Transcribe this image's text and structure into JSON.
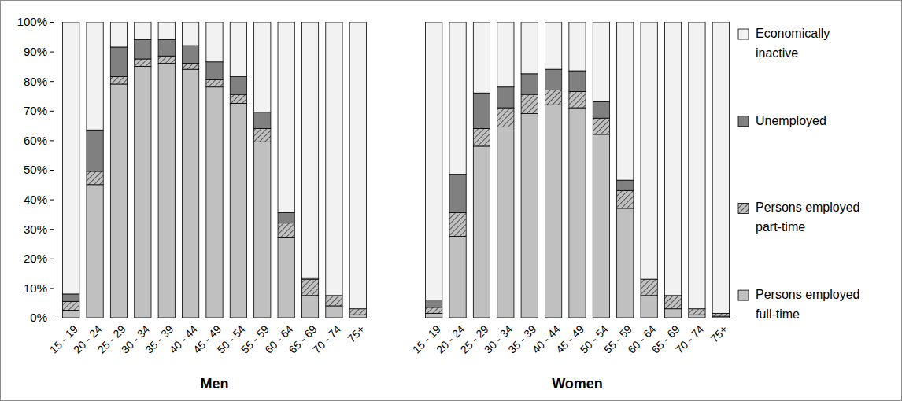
{
  "chart_data": [
    {
      "type": "bar",
      "stacked": true,
      "xlabel": "Men",
      "legend": "right",
      "categories": [
        "15 - 19",
        "20 - 24",
        "25 - 29",
        "30 - 34",
        "35 - 39",
        "40 - 44",
        "45 - 49",
        "50 - 54",
        "55 - 59",
        "60 - 64",
        "65 - 69",
        "70 - 74",
        "75+"
      ],
      "ylim": [
        0,
        100
      ],
      "yticks": [
        {
          "value": 0,
          "label": "0%"
        },
        {
          "value": 10,
          "label": "10%"
        },
        {
          "value": 20,
          "label": "20%"
        },
        {
          "value": 30,
          "label": "30%"
        },
        {
          "value": 40,
          "label": "40%"
        },
        {
          "value": 50,
          "label": "50%"
        },
        {
          "value": 60,
          "label": "60%"
        },
        {
          "value": 70,
          "label": "70%"
        },
        {
          "value": 80,
          "label": "80%"
        },
        {
          "value": 90,
          "label": "90%"
        },
        {
          "value": 100,
          "label": "100%"
        }
      ],
      "series": [
        {
          "name": "Persons employed full-time",
          "color": "#c0c0c0",
          "values": [
            2.5,
            45,
            79,
            85,
            86,
            84,
            78,
            72.5,
            59.5,
            27,
            7.5,
            4,
            1
          ]
        },
        {
          "name": "Persons employed part-time",
          "color": "#c0c0c0",
          "line_style": "hatched",
          "values": [
            3,
            4.5,
            2.5,
            2.5,
            2.5,
            2,
            2.5,
            3,
            4.5,
            5,
            5.5,
            3.5,
            2
          ]
        },
        {
          "name": "Unemployed",
          "color": "#808080",
          "values": [
            2.5,
            14,
            10,
            6.5,
            5.5,
            6,
            6,
            6,
            5.5,
            3.5,
            0.5,
            0,
            0
          ]
        },
        {
          "name": "Economically inactive",
          "color": "#f2f2f2",
          "values": [
            92,
            36.5,
            8.5,
            6,
            6,
            8,
            13.5,
            18.5,
            30.5,
            64.5,
            86.5,
            92.5,
            97
          ]
        }
      ]
    },
    {
      "type": "bar",
      "stacked": true,
      "xlabel": "Women",
      "tick_labels": "x",
      "categories": [
        "15 - 19",
        "20 - 24",
        "25 - 29",
        "30 - 34",
        "35 - 39",
        "40 - 44",
        "45 - 49",
        "50 - 54",
        "55 - 59",
        "60 - 64",
        "65 - 69",
        "70 - 74",
        "75+"
      ],
      "ylim": [
        0,
        100
      ],
      "series": [
        {
          "color": "#c0c0c0",
          "values": [
            1.5,
            27.5,
            58,
            64.5,
            69,
            72,
            71,
            62,
            37,
            7.5,
            3,
            1,
            0.5
          ]
        },
        {
          "color": "#c0c0c0",
          "line_style": "hatched",
          "values": [
            2,
            8,
            6,
            6.5,
            6.5,
            5,
            5.5,
            5.5,
            6,
            5.5,
            4.5,
            2,
            1
          ]
        },
        {
          "color": "#808080",
          "values": [
            2.5,
            13,
            12,
            7,
            7,
            7,
            7,
            5.5,
            3.5,
            0,
            0,
            0,
            0
          ]
        },
        {
          "color": "#f2f2f2",
          "values": [
            94,
            51.5,
            24,
            22,
            17.5,
            16,
            16.5,
            27,
            53.5,
            87,
            92.5,
            97,
            98.5
          ]
        }
      ]
    }
  ]
}
